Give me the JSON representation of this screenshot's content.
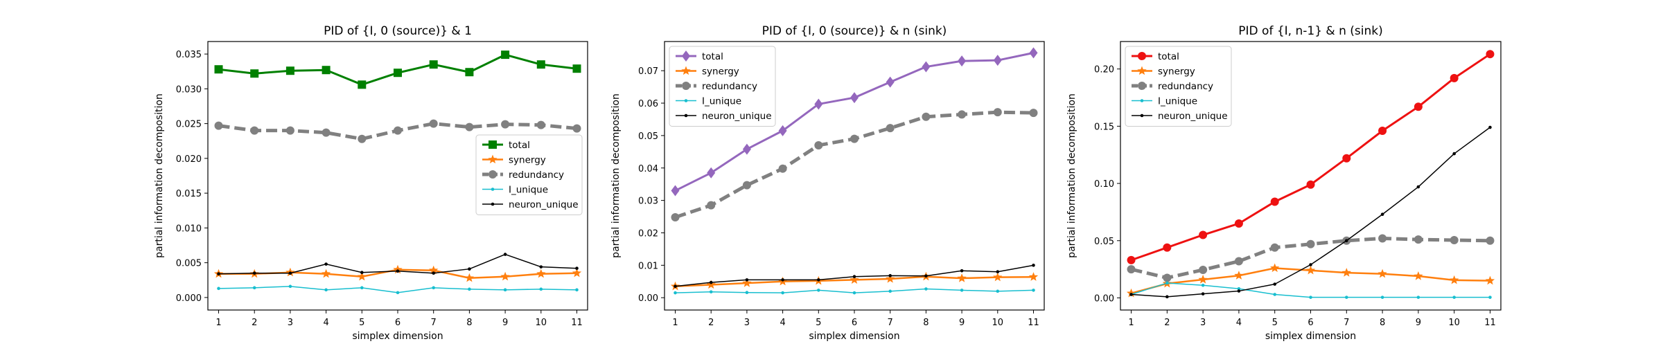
{
  "figure": {
    "background": "#ffffff"
  },
  "chart_data": [
    {
      "type": "line",
      "title": "PID of {I, 0 (source)} & 1",
      "xlabel": "simplex dimension",
      "ylabel": "partial information decomposition",
      "x": [
        1,
        2,
        3,
        4,
        5,
        6,
        7,
        8,
        9,
        10,
        11
      ],
      "xticks": [
        "1",
        "2",
        "3",
        "4",
        "5",
        "6",
        "7",
        "8",
        "9",
        "10",
        "11"
      ],
      "ylim": [
        -0.0018,
        0.0368
      ],
      "yticks": [
        "0.000",
        "0.005",
        "0.010",
        "0.015",
        "0.020",
        "0.025",
        "0.030",
        "0.035"
      ],
      "legend_position": "center-right",
      "series": [
        {
          "name": "total",
          "color": "#008000",
          "marker": "square",
          "style": "solid",
          "width": 3,
          "values": [
            0.0328,
            0.0322,
            0.0326,
            0.0327,
            0.0306,
            0.0323,
            0.0335,
            0.0324,
            0.0349,
            0.0335,
            0.0329
          ]
        },
        {
          "name": "synergy",
          "color": "#ff7f0e",
          "marker": "star",
          "style": "solid",
          "width": 2.5,
          "values": [
            0.0034,
            0.0034,
            0.0036,
            0.0034,
            0.003,
            0.004,
            0.0039,
            0.0028,
            0.003,
            0.0034,
            0.0035
          ]
        },
        {
          "name": "redundancy",
          "color": "#808080",
          "marker": "circle",
          "style": "dashed",
          "width": 5,
          "values": [
            0.0247,
            0.024,
            0.024,
            0.0237,
            0.0228,
            0.024,
            0.025,
            0.0245,
            0.0249,
            0.0248,
            0.0243
          ]
        },
        {
          "name": "I_unique",
          "color": "#17becf",
          "marker": "dot",
          "style": "solid",
          "width": 1.5,
          "values": [
            0.0013,
            0.0014,
            0.0016,
            0.0011,
            0.0014,
            0.0007,
            0.0014,
            0.0012,
            0.0011,
            0.0012,
            0.0011
          ]
        },
        {
          "name": "neuron_unique",
          "color": "#000000",
          "marker": "dot",
          "style": "solid",
          "width": 1.5,
          "values": [
            0.0034,
            0.0035,
            0.0035,
            0.0048,
            0.0036,
            0.0038,
            0.0035,
            0.0041,
            0.0062,
            0.0044,
            0.0042
          ]
        }
      ]
    },
    {
      "type": "line",
      "title": "PID of {I, 0 (source)} & n (sink)",
      "xlabel": "simplex dimension",
      "ylabel": "partial information decomposition",
      "x": [
        1,
        2,
        3,
        4,
        5,
        6,
        7,
        8,
        9,
        10,
        11
      ],
      "xticks": [
        "1",
        "2",
        "3",
        "4",
        "5",
        "6",
        "7",
        "8",
        "9",
        "10",
        "11"
      ],
      "ylim": [
        -0.0038,
        0.079
      ],
      "yticks": [
        "0.00",
        "0.01",
        "0.02",
        "0.03",
        "0.04",
        "0.05",
        "0.06",
        "0.07"
      ],
      "legend_position": "top-left",
      "series": [
        {
          "name": "total",
          "color": "#9467bd",
          "marker": "diamond",
          "style": "solid",
          "width": 3,
          "values": [
            0.033,
            0.0385,
            0.0458,
            0.0515,
            0.0597,
            0.0617,
            0.0665,
            0.0712,
            0.073,
            0.0732,
            0.0755
          ]
        },
        {
          "name": "synergy",
          "color": "#ff7f0e",
          "marker": "star",
          "style": "solid",
          "width": 2.5,
          "values": [
            0.0035,
            0.004,
            0.0045,
            0.005,
            0.0052,
            0.0055,
            0.0058,
            0.0065,
            0.006,
            0.0063,
            0.0064
          ]
        },
        {
          "name": "redundancy",
          "color": "#808080",
          "marker": "circle",
          "style": "dashed",
          "width": 5,
          "values": [
            0.0248,
            0.0285,
            0.0347,
            0.0398,
            0.047,
            0.049,
            0.0523,
            0.0558,
            0.0565,
            0.0572,
            0.057
          ]
        },
        {
          "name": "I_unique",
          "color": "#17becf",
          "marker": "dot",
          "style": "solid",
          "width": 1.5,
          "values": [
            0.0015,
            0.0018,
            0.0016,
            0.0015,
            0.0023,
            0.0015,
            0.002,
            0.0027,
            0.0023,
            0.002,
            0.0023
          ]
        },
        {
          "name": "neuron_unique",
          "color": "#000000",
          "marker": "dot",
          "style": "solid",
          "width": 1.5,
          "values": [
            0.0035,
            0.0047,
            0.0055,
            0.0055,
            0.0055,
            0.0065,
            0.0068,
            0.0067,
            0.0083,
            0.008,
            0.01
          ]
        }
      ]
    },
    {
      "type": "line",
      "title": "PID of {I, n-1} & n (sink)",
      "xlabel": "simplex dimension",
      "ylabel": "partial information decomposition",
      "x": [
        1,
        2,
        3,
        4,
        5,
        6,
        7,
        8,
        9,
        10,
        11
      ],
      "xticks": [
        "1",
        "2",
        "3",
        "4",
        "5",
        "6",
        "7",
        "8",
        "9",
        "10",
        "11"
      ],
      "ylim": [
        -0.0106,
        0.224
      ],
      "yticks": [
        "0.00",
        "0.05",
        "0.10",
        "0.15",
        "0.20"
      ],
      "legend_position": "top-left",
      "series": [
        {
          "name": "total",
          "color": "#ee1111",
          "marker": "circle",
          "style": "solid",
          "width": 3,
          "values": [
            0.033,
            0.044,
            0.055,
            0.065,
            0.084,
            0.099,
            0.122,
            0.146,
            0.167,
            0.192,
            0.213
          ]
        },
        {
          "name": "synergy",
          "color": "#ff7f0e",
          "marker": "star",
          "style": "solid",
          "width": 2.5,
          "values": [
            0.004,
            0.0125,
            0.016,
            0.0195,
            0.026,
            0.024,
            0.022,
            0.021,
            0.019,
            0.0155,
            0.015
          ]
        },
        {
          "name": "redundancy",
          "color": "#808080",
          "marker": "circle",
          "style": "dashed",
          "width": 5,
          "values": [
            0.025,
            0.0175,
            0.0245,
            0.032,
            0.044,
            0.047,
            0.05,
            0.052,
            0.051,
            0.0505,
            0.05
          ]
        },
        {
          "name": "I_unique",
          "color": "#17becf",
          "marker": "dot",
          "style": "solid",
          "width": 1.5,
          "values": [
            0.003,
            0.013,
            0.011,
            0.008,
            0.003,
            0.0005,
            0.0005,
            0.0005,
            0.0005,
            0.0005,
            0.0005
          ]
        },
        {
          "name": "neuron_unique",
          "color": "#000000",
          "marker": "dot",
          "style": "solid",
          "width": 1.5,
          "values": [
            0.003,
            0.001,
            0.0035,
            0.006,
            0.012,
            0.029,
            0.05,
            0.073,
            0.097,
            0.126,
            0.149
          ]
        }
      ]
    }
  ]
}
